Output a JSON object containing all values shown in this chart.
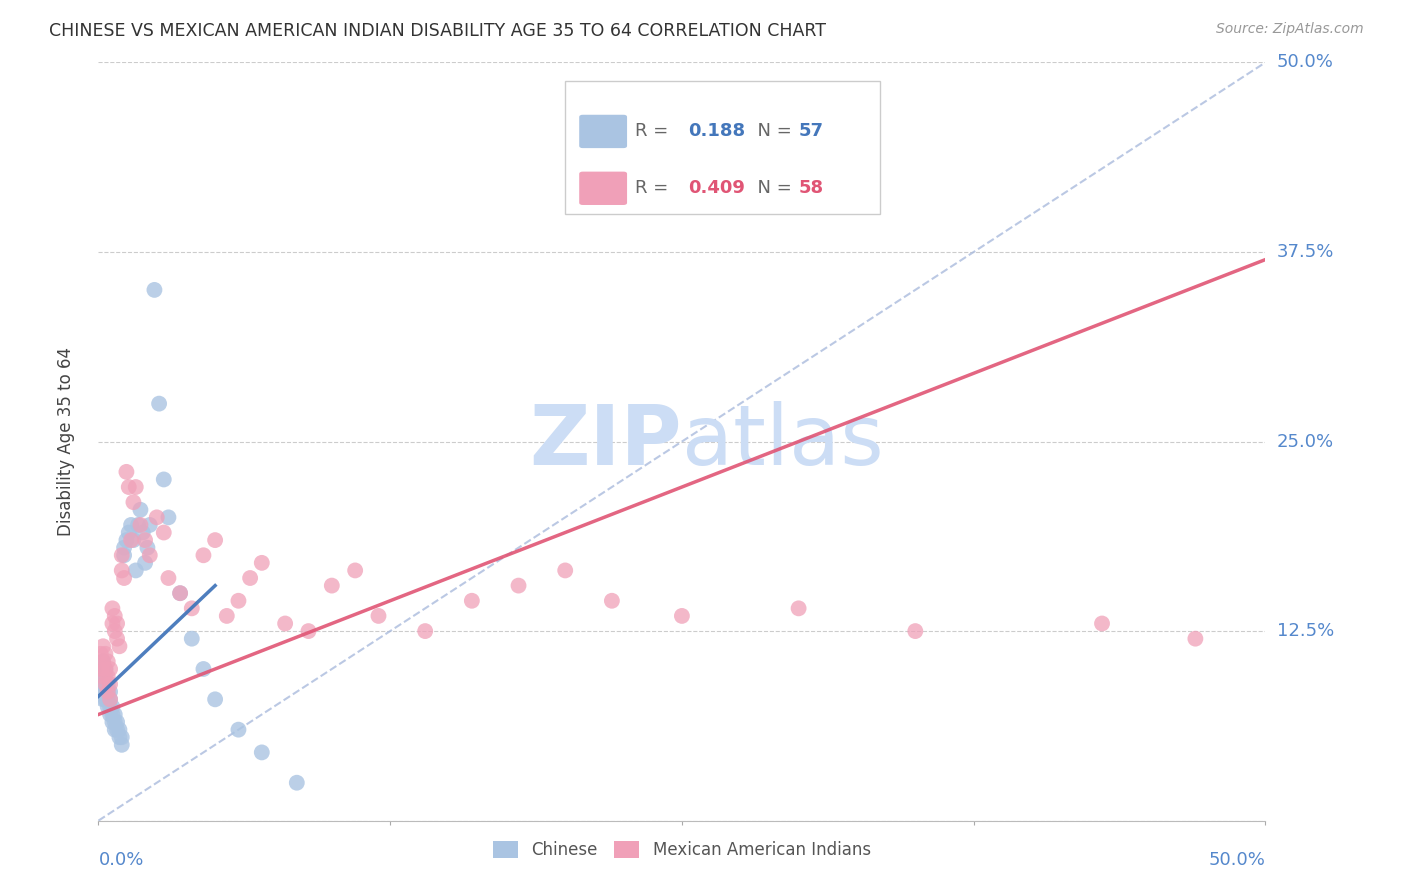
{
  "title": "CHINESE VS MEXICAN AMERICAN INDIAN DISABILITY AGE 35 TO 64 CORRELATION CHART",
  "source": "Source: ZipAtlas.com",
  "ylabel": "Disability Age 35 to 64",
  "y_ticks": [
    0.0,
    0.125,
    0.25,
    0.375,
    0.5
  ],
  "y_tick_labels": [
    "",
    "12.5%",
    "25.0%",
    "37.5%",
    "50.0%"
  ],
  "xlim": [
    0.0,
    0.5
  ],
  "ylim": [
    0.0,
    0.5
  ],
  "chinese_R": 0.188,
  "chinese_N": 57,
  "mexican_R": 0.409,
  "mexican_N": 58,
  "chinese_color": "#aac4e2",
  "mexican_color": "#f0a0b8",
  "chinese_line_color": "#4477bb",
  "mexican_line_color": "#e05575",
  "tick_label_color": "#5588cc",
  "watermark_color": "#ccddf5",
  "legend_r_color_chinese": "#4477bb",
  "legend_r_color_mexican": "#e05575",
  "chinese_x": [
    0.001,
    0.001,
    0.001,
    0.002,
    0.002,
    0.002,
    0.002,
    0.002,
    0.003,
    0.003,
    0.003,
    0.003,
    0.003,
    0.004,
    0.004,
    0.004,
    0.004,
    0.005,
    0.005,
    0.005,
    0.005,
    0.006,
    0.006,
    0.006,
    0.007,
    0.007,
    0.007,
    0.008,
    0.008,
    0.009,
    0.009,
    0.01,
    0.01,
    0.011,
    0.011,
    0.012,
    0.013,
    0.014,
    0.015,
    0.016,
    0.017,
    0.018,
    0.019,
    0.02,
    0.021,
    0.022,
    0.024,
    0.026,
    0.028,
    0.03,
    0.035,
    0.04,
    0.045,
    0.05,
    0.06,
    0.07,
    0.085
  ],
  "chinese_y": [
    0.095,
    0.1,
    0.085,
    0.08,
    0.09,
    0.095,
    0.1,
    0.105,
    0.08,
    0.085,
    0.09,
    0.095,
    0.1,
    0.075,
    0.08,
    0.085,
    0.09,
    0.07,
    0.075,
    0.08,
    0.085,
    0.065,
    0.07,
    0.075,
    0.06,
    0.065,
    0.07,
    0.06,
    0.065,
    0.055,
    0.06,
    0.05,
    0.055,
    0.175,
    0.18,
    0.185,
    0.19,
    0.195,
    0.185,
    0.165,
    0.195,
    0.205,
    0.19,
    0.17,
    0.18,
    0.195,
    0.35,
    0.275,
    0.225,
    0.2,
    0.15,
    0.12,
    0.1,
    0.08,
    0.06,
    0.045,
    0.025
  ],
  "mexican_x": [
    0.001,
    0.001,
    0.002,
    0.002,
    0.002,
    0.003,
    0.003,
    0.003,
    0.004,
    0.004,
    0.004,
    0.005,
    0.005,
    0.005,
    0.006,
    0.006,
    0.007,
    0.007,
    0.008,
    0.008,
    0.009,
    0.01,
    0.01,
    0.011,
    0.012,
    0.013,
    0.014,
    0.015,
    0.016,
    0.018,
    0.02,
    0.022,
    0.025,
    0.028,
    0.03,
    0.035,
    0.04,
    0.045,
    0.05,
    0.055,
    0.06,
    0.065,
    0.07,
    0.08,
    0.09,
    0.1,
    0.11,
    0.12,
    0.14,
    0.16,
    0.18,
    0.2,
    0.22,
    0.25,
    0.3,
    0.35,
    0.43,
    0.47
  ],
  "mexican_y": [
    0.1,
    0.11,
    0.095,
    0.105,
    0.115,
    0.09,
    0.1,
    0.11,
    0.085,
    0.095,
    0.105,
    0.08,
    0.09,
    0.1,
    0.13,
    0.14,
    0.125,
    0.135,
    0.12,
    0.13,
    0.115,
    0.165,
    0.175,
    0.16,
    0.23,
    0.22,
    0.185,
    0.21,
    0.22,
    0.195,
    0.185,
    0.175,
    0.2,
    0.19,
    0.16,
    0.15,
    0.14,
    0.175,
    0.185,
    0.135,
    0.145,
    0.16,
    0.17,
    0.13,
    0.125,
    0.155,
    0.165,
    0.135,
    0.125,
    0.145,
    0.155,
    0.165,
    0.145,
    0.135,
    0.14,
    0.125,
    0.13,
    0.12
  ],
  "diag_line_x": [
    0.0,
    0.5
  ],
  "diag_line_y": [
    0.0,
    0.5
  ],
  "chinese_trend_x": [
    0.0,
    0.05
  ],
  "chinese_trend_y_start": 0.082,
  "chinese_trend_y_end": 0.155,
  "mexican_trend_x": [
    0.0,
    0.5
  ],
  "mexican_trend_y_start": 0.07,
  "mexican_trend_y_end": 0.37
}
